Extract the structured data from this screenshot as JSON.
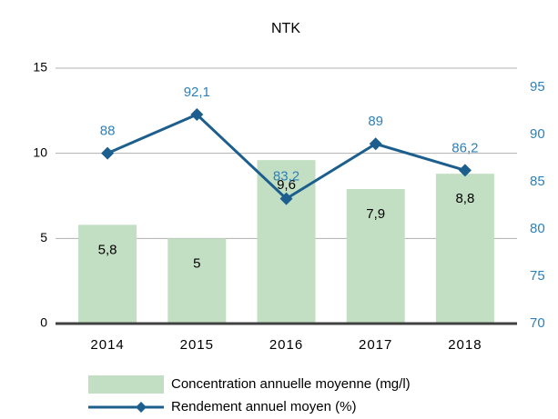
{
  "chart_data": {
    "type": "bar",
    "title": "NTK",
    "categories": [
      "2014",
      "2015",
      "2016",
      "2017",
      "2018"
    ],
    "series": [
      {
        "name": "Concentration annuelle moyenne (mg/l)",
        "type": "bar",
        "color": "#c3dfc3",
        "values": [
          5.8,
          5,
          9.6,
          7.9,
          8.8
        ],
        "value_labels": [
          "5,8",
          "5",
          "9,6",
          "7,9",
          "8,8"
        ]
      },
      {
        "name": "Rendement annuel moyen (%)",
        "type": "line",
        "axis": "y2",
        "color": "#1c5f8e",
        "values": [
          88,
          92.1,
          83.2,
          89,
          86.2
        ],
        "value_labels": [
          "88",
          "92,1",
          "83,2",
          "89",
          "86,2"
        ]
      }
    ],
    "ylim": [
      0,
      15
    ],
    "yticks": [
      0,
      5,
      10,
      15
    ],
    "y2lim": [
      70,
      97
    ],
    "y2ticks": [
      70,
      75,
      80,
      85,
      90,
      95
    ],
    "grid": true
  }
}
